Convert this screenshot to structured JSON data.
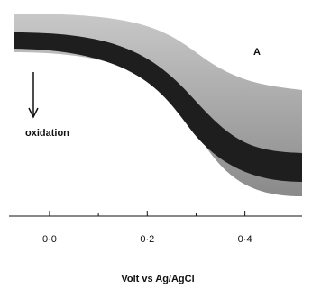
{
  "chart_data": {
    "type": "band",
    "annotations": [
      "A",
      "oxidation"
    ],
    "xlabel": "Volt vs Ag/AgCl",
    "xlim": [
      -0.083,
      0.517
    ],
    "xticks": [
      {
        "value": 0,
        "label": "0·0"
      },
      {
        "value": 0.2,
        "label": "0·2"
      },
      {
        "value": 0.4,
        "label": "0·4"
      }
    ],
    "minor_xticks": [
      0.1,
      0.3
    ]
  }
}
